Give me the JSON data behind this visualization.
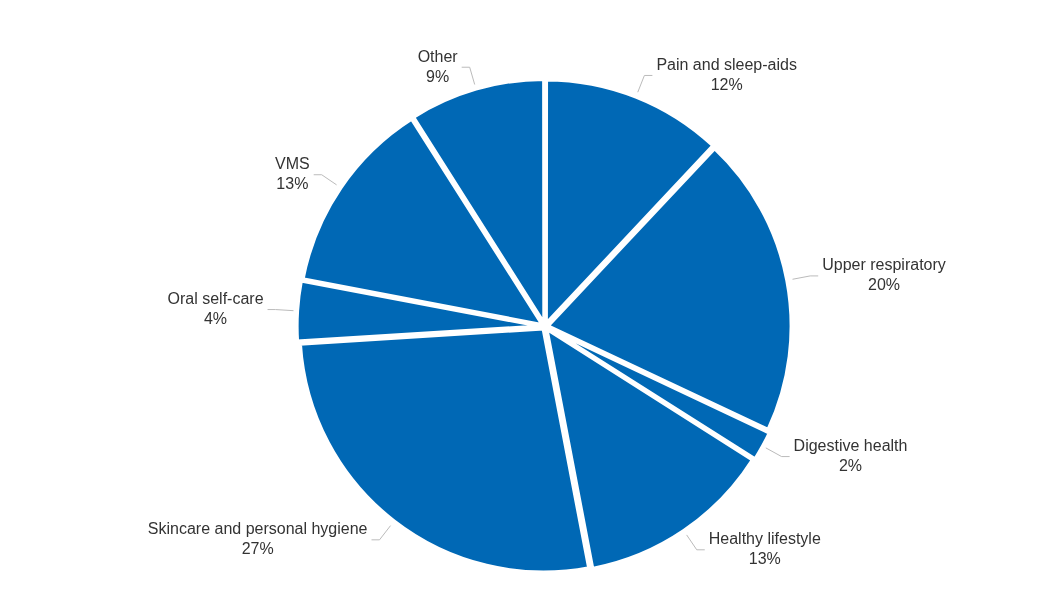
{
  "chart_data": {
    "type": "pie",
    "categories": [
      "Pain and sleep-aids",
      "Upper respiratory",
      "Digestive health",
      "Healthy lifestyle",
      "Skincare and personal hygiene",
      "Oral self-care",
      "VMS",
      "Other"
    ],
    "values": [
      12,
      20,
      2,
      13,
      27,
      4,
      13,
      9
    ],
    "value_labels": [
      "12%",
      "20%",
      "2%",
      "13%",
      "27%",
      "4%",
      "13%",
      "9%"
    ],
    "colors": [
      "#0068b5",
      "#0068b5",
      "#0068b5",
      "#0068b5",
      "#0068b5",
      "#0068b5",
      "#0068b5",
      "#0068b5"
    ],
    "legend": false
  }
}
